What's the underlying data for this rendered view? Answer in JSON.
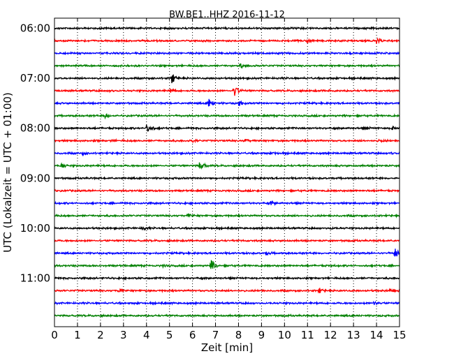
{
  "chart_data": {
    "type": "line",
    "title": "BW.BE1..HHZ 2016-11-12",
    "xlabel": "Zeit  [min]",
    "ylabel": "UTC (Lokalzeit = UTC + 01:00)",
    "xlim": [
      0,
      15
    ],
    "x_ticks": [
      "0",
      "1",
      "2",
      "3",
      "4",
      "5",
      "6",
      "7",
      "8",
      "9",
      "10",
      "11",
      "12",
      "13",
      "14",
      "15"
    ],
    "y_ticks": [
      {
        "label": "06:00",
        "row": 0
      },
      {
        "label": "07:00",
        "row": 4
      },
      {
        "label": "08:00",
        "row": 8
      },
      {
        "label": "09:00",
        "row": 12
      },
      {
        "label": "10:00",
        "row": 16
      },
      {
        "label": "11:00",
        "row": 20
      }
    ],
    "row_interval_min": 15,
    "trace_colors": [
      "#000000",
      "#ff0000",
      "#0000ff",
      "#008000"
    ],
    "grid": "vertical-dotted",
    "traces": [
      {
        "row": 0,
        "start": "06:00",
        "events": []
      },
      {
        "row": 1,
        "start": "06:15",
        "events": [
          {
            "t": 11.0,
            "amp": 0.5
          },
          {
            "t": 14.0,
            "amp": 0.6
          }
        ]
      },
      {
        "row": 2,
        "start": "06:30",
        "events": []
      },
      {
        "row": 3,
        "start": "06:45",
        "events": [
          {
            "t": 8.1,
            "amp": 0.6
          }
        ]
      },
      {
        "row": 4,
        "start": "07:00",
        "events": [
          {
            "t": 5.1,
            "amp": 1.0
          }
        ]
      },
      {
        "row": 5,
        "start": "07:15",
        "events": [
          {
            "t": 7.8,
            "amp": 1.4
          },
          {
            "t": 5.0,
            "amp": 0.4
          },
          {
            "t": 2.4,
            "amp": 0.3
          },
          {
            "t": 11.9,
            "amp": 0.3
          }
        ]
      },
      {
        "row": 6,
        "start": "07:30",
        "events": [
          {
            "t": 6.7,
            "amp": 1.2
          },
          {
            "t": 8.0,
            "amp": 0.5
          }
        ]
      },
      {
        "row": 7,
        "start": "07:45",
        "events": [
          {
            "t": 2.2,
            "amp": 0.5
          }
        ]
      },
      {
        "row": 8,
        "start": "08:00",
        "events": [
          {
            "t": 4.0,
            "amp": 1.1
          },
          {
            "t": 14.7,
            "amp": 0.5
          },
          {
            "t": 13.5,
            "amp": 0.3
          }
        ]
      },
      {
        "row": 9,
        "start": "08:15",
        "events": [
          {
            "t": 2.5,
            "amp": 0.3
          },
          {
            "t": 6.0,
            "amp": 0.3
          },
          {
            "t": 8.3,
            "amp": 0.3
          },
          {
            "t": 14.1,
            "amp": 0.3
          }
        ]
      },
      {
        "row": 10,
        "start": "08:30",
        "events": [
          {
            "t": 1.2,
            "amp": 0.3
          },
          {
            "t": 9.5,
            "amp": 0.3
          },
          {
            "t": 14.6,
            "amp": 0.3
          }
        ]
      },
      {
        "row": 11,
        "start": "08:45",
        "events": [
          {
            "t": 6.3,
            "amp": 1.1
          },
          {
            "t": 0.3,
            "amp": 0.4
          }
        ]
      },
      {
        "row": 12,
        "start": "09:00",
        "events": []
      },
      {
        "row": 13,
        "start": "09:15",
        "events": []
      },
      {
        "row": 14,
        "start": "09:30",
        "events": [
          {
            "t": 9.4,
            "amp": 0.4
          }
        ]
      },
      {
        "row": 15,
        "start": "09:45",
        "events": [
          {
            "t": 5.8,
            "amp": 0.5
          }
        ]
      },
      {
        "row": 16,
        "start": "10:00",
        "events": [
          {
            "t": 3.8,
            "amp": 0.4
          },
          {
            "t": 12.0,
            "amp": 0.2
          }
        ]
      },
      {
        "row": 17,
        "start": "10:15",
        "events": []
      },
      {
        "row": 18,
        "start": "10:30",
        "events": [
          {
            "t": 14.8,
            "amp": 1.1
          },
          {
            "t": 9.2,
            "amp": 0.4
          }
        ]
      },
      {
        "row": 19,
        "start": "10:45",
        "events": [
          {
            "t": 6.8,
            "amp": 1.2
          },
          {
            "t": 4.7,
            "amp": 0.3
          }
        ]
      },
      {
        "row": 20,
        "start": "11:00",
        "events": []
      },
      {
        "row": 21,
        "start": "11:15",
        "events": [
          {
            "t": 11.5,
            "amp": 0.5
          },
          {
            "t": 2.8,
            "amp": 0.3
          },
          {
            "t": 14.6,
            "amp": 0.3
          }
        ]
      },
      {
        "row": 22,
        "start": "11:30",
        "events": [
          {
            "t": 13.9,
            "amp": 0.5
          }
        ]
      },
      {
        "row": 23,
        "start": "11:45",
        "events": []
      }
    ]
  }
}
